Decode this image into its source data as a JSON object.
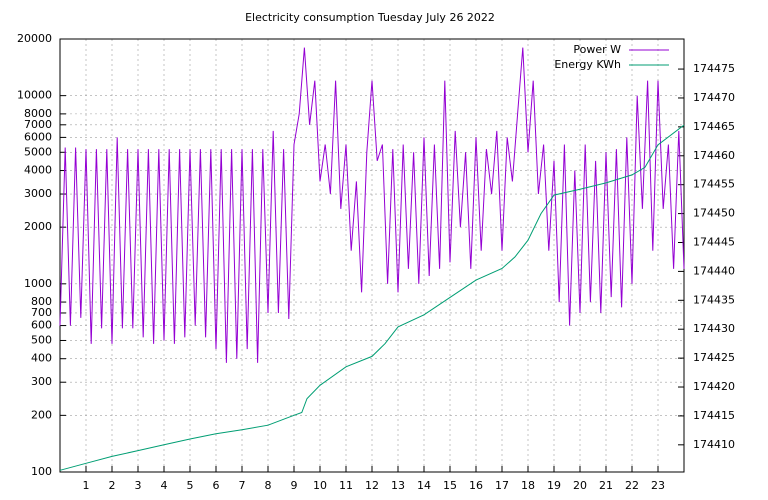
{
  "chart_data": {
    "type": "line",
    "title": "Electricity consumption Tuesday July 26 2022",
    "xlim": [
      0,
      24
    ],
    "xticks": [
      1,
      2,
      3,
      4,
      5,
      6,
      7,
      8,
      9,
      10,
      11,
      12,
      13,
      14,
      15,
      16,
      17,
      18,
      19,
      20,
      21,
      22,
      23
    ],
    "ylim": [
      100,
      20000
    ],
    "log_y": true,
    "yticks": [
      100,
      200,
      300,
      400,
      500,
      600,
      700,
      800,
      1000,
      2000,
      3000,
      4000,
      5000,
      6000,
      7000,
      8000,
      10000,
      20000
    ],
    "y2lim": [
      174405.3,
      174480.2
    ],
    "y2ticks": [
      174410,
      174415,
      174420,
      174425,
      174430,
      174435,
      174440,
      174445,
      174450,
      174455,
      174460,
      174465,
      174470,
      174475
    ],
    "grid": true,
    "legend": "top-right",
    "series": [
      {
        "name": "Power W",
        "color": "#9400d3",
        "x": [
          0,
          0.2,
          0.4,
          0.6,
          0.8,
          1,
          1.2,
          1.4,
          1.6,
          1.8,
          2,
          2.2,
          2.4,
          2.6,
          2.8,
          3,
          3.2,
          3.4,
          3.6,
          3.8,
          4,
          4.2,
          4.4,
          4.6,
          4.8,
          5,
          5.2,
          5.4,
          5.6,
          5.8,
          6,
          6.2,
          6.4,
          6.6,
          6.8,
          7,
          7.2,
          7.4,
          7.6,
          7.8,
          8,
          8.2,
          8.4,
          8.6,
          8.8,
          9,
          9.2,
          9.4,
          9.6,
          9.8,
          10,
          10.2,
          10.4,
          10.6,
          10.8,
          11,
          11.2,
          11.4,
          11.6,
          11.8,
          12,
          12.2,
          12.4,
          12.6,
          12.8,
          13,
          13.2,
          13.4,
          13.6,
          13.8,
          14,
          14.2,
          14.4,
          14.6,
          14.8,
          15,
          15.2,
          15.4,
          15.6,
          15.8,
          16,
          16.2,
          16.4,
          16.6,
          16.8,
          17,
          17.2,
          17.4,
          17.6,
          17.8,
          18,
          18.2,
          18.4,
          18.6,
          18.8,
          19,
          19.2,
          19.4,
          19.6,
          19.8,
          20,
          20.2,
          20.4,
          20.6,
          20.8,
          21,
          21.2,
          21.4,
          21.6,
          21.8,
          22,
          22.2,
          22.4,
          22.6,
          22.8,
          23,
          23.2,
          23.4,
          23.6,
          23.8,
          24
        ],
        "values": [
          600,
          5300,
          600,
          5300,
          660,
          5200,
          480,
          5200,
          580,
          5200,
          480,
          6000,
          580,
          5200,
          580,
          5200,
          520,
          5200,
          480,
          5200,
          500,
          5200,
          480,
          5200,
          520,
          5200,
          600,
          5200,
          520,
          5200,
          450,
          5200,
          380,
          5200,
          400,
          5200,
          450,
          5200,
          380,
          5200,
          700,
          6500,
          700,
          5200,
          650,
          5500,
          8000,
          18000,
          7000,
          12000,
          3500,
          5500,
          3000,
          12000,
          2500,
          5500,
          1500,
          3500,
          900,
          5000,
          12000,
          4500,
          5500,
          1000,
          5200,
          900,
          5500,
          1200,
          5000,
          1000,
          6000,
          1100,
          5500,
          1200,
          12000,
          1300,
          6500,
          2000,
          5000,
          1200,
          6000,
          1500,
          5200,
          3000,
          6500,
          1500,
          6000,
          3500,
          8000,
          18000,
          5000,
          12000,
          3000,
          5500,
          1500,
          4500,
          800,
          5500,
          600,
          4000,
          700,
          5500,
          800,
          4500,
          700,
          5000,
          850,
          5200,
          750,
          6000,
          1000,
          10000,
          2500,
          12000,
          1500,
          12000,
          2500,
          5500,
          1200,
          6500,
          1200
        ]
      },
      {
        "name": "Energy KWh",
        "color": "#009e73",
        "axis": "y2",
        "x": [
          0,
          1,
          2,
          3,
          4,
          5,
          6,
          7,
          8,
          9,
          9.3,
          9.5,
          10,
          11,
          12,
          12.5,
          13,
          14,
          15,
          16,
          17,
          17.5,
          18,
          18.5,
          19,
          20,
          21,
          22,
          22.5,
          23,
          24
        ],
        "values": [
          174405.6,
          174406.8,
          174408.0,
          174409.0,
          174410.0,
          174411.0,
          174411.9,
          174412.6,
          174413.4,
          174415.1,
          174415.6,
          174418,
          174420.3,
          174423.5,
          174425.3,
          174427.5,
          174430.4,
          174432.5,
          174435.5,
          174438.5,
          174440.5,
          174442.5,
          174445.4,
          174450,
          174453.2,
          174454.2,
          174455.3,
          174456.7,
          174458,
          174461.9,
          174465.3
        ]
      }
    ]
  }
}
